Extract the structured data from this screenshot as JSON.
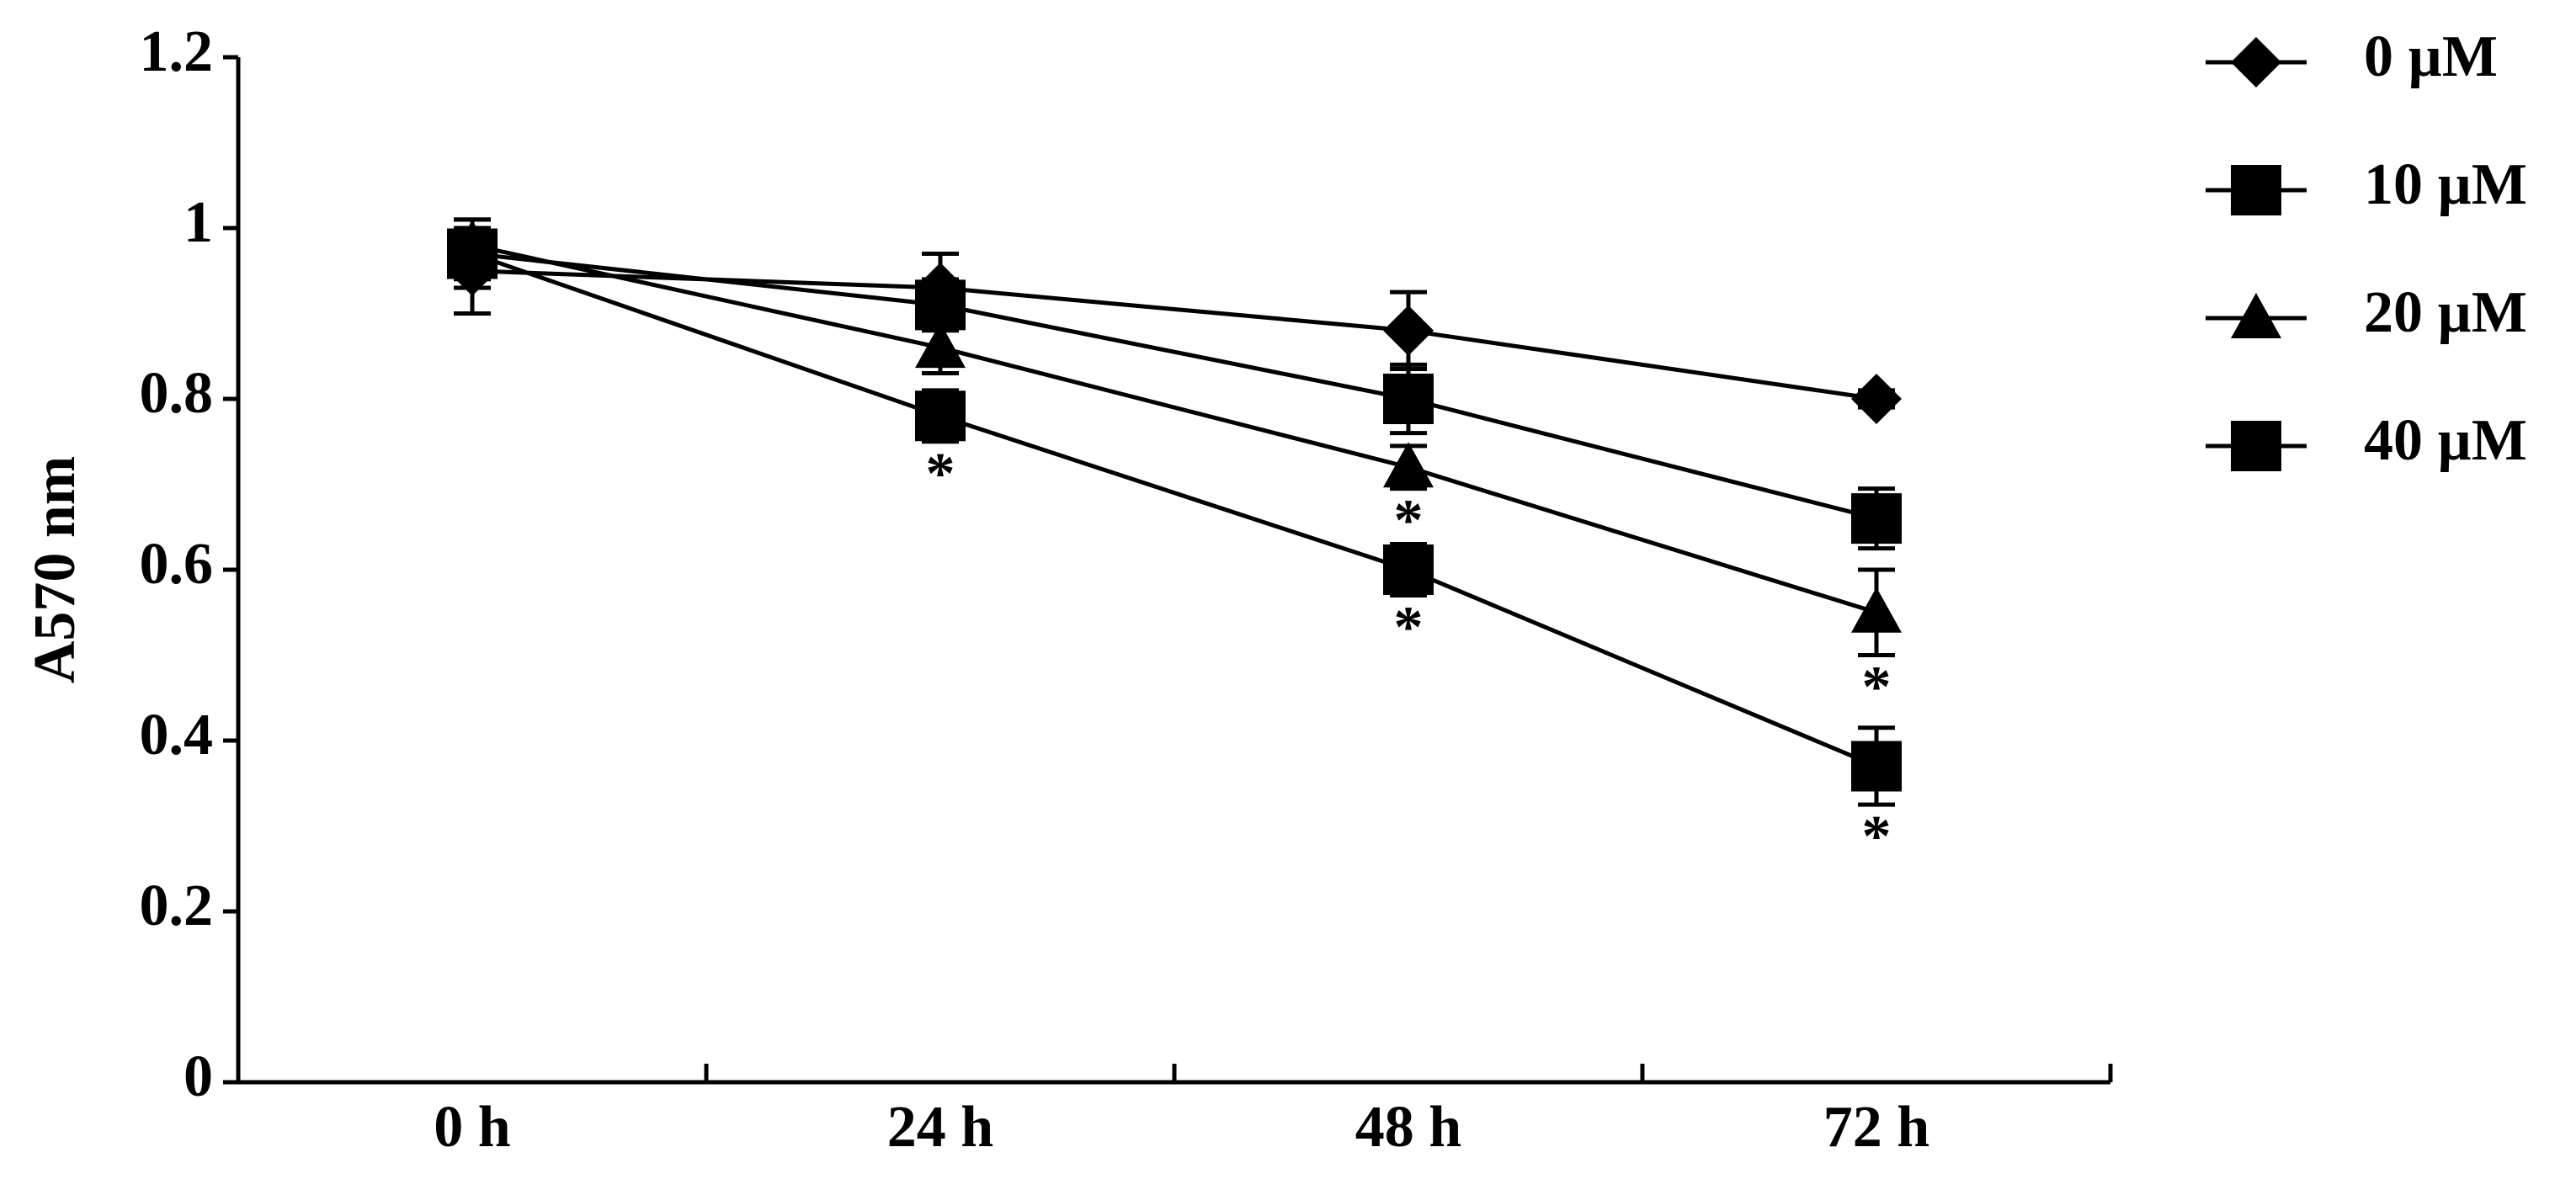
{
  "chart_data": {
    "type": "line",
    "y_label": "A570 nm",
    "categories": [
      "0 h",
      "24 h",
      "48 h",
      "72 h"
    ],
    "series": [
      {
        "name": "0 µM",
        "color": "#000000",
        "marker": "diamond",
        "values": [
          0.95,
          0.93,
          0.88,
          0.8
        ],
        "errors": [
          0.05,
          0.04,
          0.045,
          0.01
        ],
        "significance": [
          null,
          null,
          null,
          null
        ]
      },
      {
        "name": "10 µM",
        "color": "#000000",
        "marker": "square",
        "values": [
          0.97,
          0.91,
          0.8,
          0.66
        ],
        "errors": [
          0.04,
          0.03,
          0.04,
          0.035
        ],
        "significance": [
          null,
          null,
          null,
          null
        ]
      },
      {
        "name": "20 µM",
        "color": "#000000",
        "marker": "triangle",
        "values": [
          0.98,
          0.86,
          0.72,
          0.55
        ],
        "errors": [
          0.03,
          0.03,
          0.025,
          0.05
        ],
        "significance": [
          null,
          null,
          "*",
          "*"
        ]
      },
      {
        "name": "40 µM",
        "color": "#000000",
        "marker": "square",
        "values": [
          0.97,
          0.78,
          0.6,
          0.37
        ],
        "errors": [
          0.03,
          0.03,
          0.03,
          0.045
        ],
        "significance": [
          null,
          "*",
          "*",
          "*"
        ]
      }
    ],
    "ylim": [
      0,
      1.2
    ],
    "yticks": [
      0,
      0.2,
      0.4,
      0.6,
      0.8,
      1,
      1.2
    ],
    "grid": false,
    "legend": "right"
  }
}
